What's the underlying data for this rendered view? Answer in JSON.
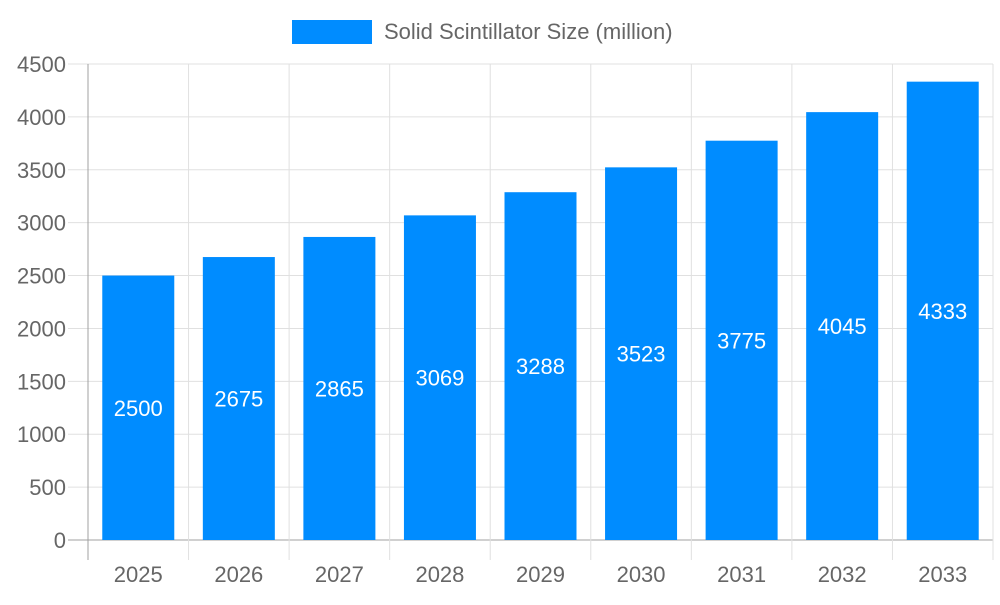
{
  "chart_data": {
    "type": "bar",
    "categories": [
      "2025",
      "2026",
      "2027",
      "2028",
      "2029",
      "2030",
      "2031",
      "2032",
      "2033"
    ],
    "series": [
      {
        "name": "Solid Scintillator Size (million)",
        "values": [
          2500,
          2675,
          2865,
          3069,
          3288,
          3523,
          3775,
          4045,
          4333
        ],
        "color": "#008cff"
      }
    ],
    "ylim": [
      0,
      4500
    ],
    "yticks": [
      0,
      500,
      1000,
      1500,
      2000,
      2500,
      3000,
      3500,
      4000,
      4500
    ],
    "grid": true,
    "legend": "top-center",
    "data_labels": true,
    "colors": {
      "bar": "#008cff",
      "grid": "#e0e0e0",
      "axis": "#a0a0a0",
      "text": "#666666",
      "label": "#ffffff"
    }
  }
}
